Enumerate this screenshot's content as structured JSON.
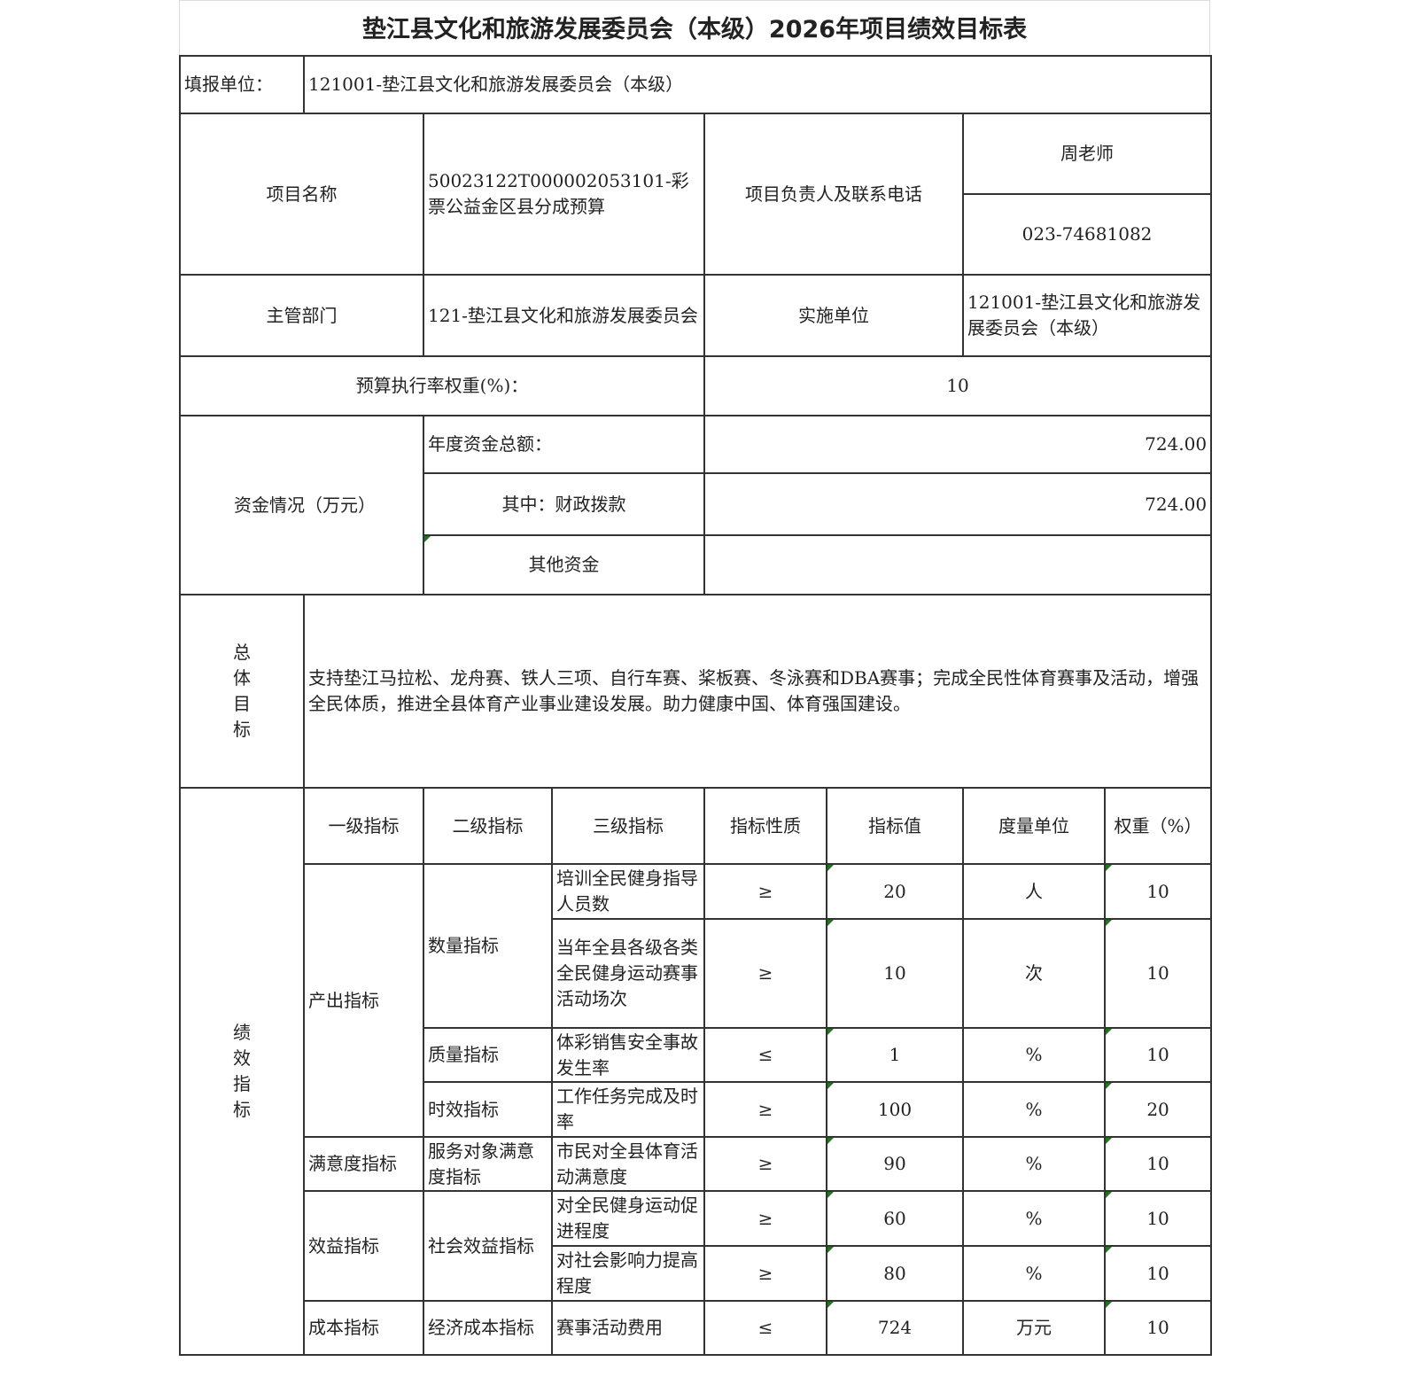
{
  "title": "垫江县文化和旅游发展委员会（本级）2026年项目绩效目标表",
  "fill_unit": {
    "label": "填报单位：",
    "value": "121001-垫江县文化和旅游发展委员会（本级）"
  },
  "project": {
    "name_label": "项目名称",
    "name_value": "50023122T000002053101-彩票公益金区县分成预算",
    "contact_label": "项目负责人及联系电话",
    "contact_name": "周老师",
    "contact_phone": "023-74681082"
  },
  "department": {
    "label": "主管部门",
    "value": "121-垫江县文化和旅游发展委员会",
    "impl_label": "实施单位",
    "impl_value": "121001-垫江县文化和旅游发展委员会（本级）"
  },
  "budget_rate": {
    "label": "预算执行率权重(%)：",
    "value": "10"
  },
  "funds": {
    "label": "资金情况（万元）",
    "total_label": "年度资金总额：",
    "total_value": "724.00",
    "fiscal_label": "其中：财政拨款",
    "fiscal_value": "724.00",
    "other_label": "其他资金",
    "other_value": ""
  },
  "goal": {
    "label": "总体目标",
    "text": "支持垫江马拉松、龙舟赛、铁人三项、自行车赛、桨板赛、冬泳赛和DBA赛事；完成全民性体育赛事及活动，增强全民体质，推进全县体育产业事业建设发展。助力健康中国、体育强国建设。"
  },
  "indicators": {
    "label": "绩效指标",
    "headers": [
      "一级指标",
      "二级指标",
      "三级指标",
      "指标性质",
      "指标值",
      "度量单位",
      "权重（%）"
    ],
    "level1": [
      "产出指标",
      "满意度指标",
      "效益指标",
      "成本指标"
    ],
    "level2": [
      "数量指标",
      "质量指标",
      "时效指标",
      "服务对象满意度指标",
      "社会效益指标",
      "经济成本指标"
    ],
    "rows": [
      {
        "name": "培训全民健身指导人员数",
        "op": "≥",
        "value": "20",
        "unit": "人",
        "weight": "10"
      },
      {
        "name": "当年全县各级各类全民健身运动赛事活动场次",
        "op": "≥",
        "value": "10",
        "unit": "次",
        "weight": "10"
      },
      {
        "name": "体彩销售安全事故发生率",
        "op": "≤",
        "value": "1",
        "unit": "%",
        "weight": "10"
      },
      {
        "name": "工作任务完成及时率",
        "op": "≥",
        "value": "100",
        "unit": "%",
        "weight": "20"
      },
      {
        "name": "市民对全县体育活动满意度",
        "op": "≥",
        "value": "90",
        "unit": "%",
        "weight": "10"
      },
      {
        "name": "对全民健身运动促进程度",
        "op": "≥",
        "value": "60",
        "unit": "%",
        "weight": "10"
      },
      {
        "name": "对社会影响力提高程度",
        "op": "≥",
        "value": "80",
        "unit": "%",
        "weight": "10"
      },
      {
        "name": "赛事活动费用",
        "op": "≤",
        "value": "724",
        "unit": "万元",
        "weight": "10"
      }
    ]
  }
}
